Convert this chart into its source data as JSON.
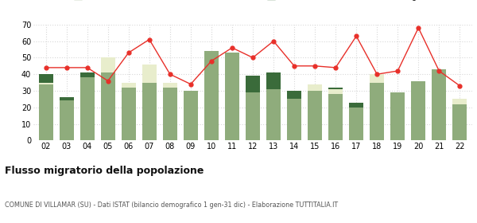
{
  "years": [
    "02",
    "03",
    "04",
    "05",
    "06",
    "07",
    "08",
    "09",
    "10",
    "11",
    "12",
    "13",
    "14",
    "15",
    "16",
    "17",
    "18",
    "19",
    "20",
    "21",
    "22"
  ],
  "iscritti_comuni": [
    34,
    24,
    38,
    41,
    32,
    35,
    32,
    30,
    54,
    53,
    29,
    31,
    25,
    30,
    28,
    20,
    35,
    29,
    36,
    43,
    22
  ],
  "iscritti_estero": [
    1,
    0,
    0,
    9,
    3,
    11,
    3,
    0,
    0,
    0,
    0,
    0,
    0,
    4,
    3,
    0,
    5,
    0,
    0,
    0,
    3
  ],
  "iscritti_altri": [
    5,
    2,
    3,
    0,
    0,
    0,
    0,
    0,
    0,
    0,
    10,
    10,
    5,
    0,
    1,
    3,
    0,
    0,
    0,
    0,
    0
  ],
  "cancellati": [
    44,
    44,
    44,
    36,
    53,
    61,
    40,
    34,
    48,
    56,
    50,
    60,
    45,
    45,
    44,
    63,
    40,
    42,
    68,
    42,
    33
  ],
  "color_comuni": "#8fac7c",
  "color_estero": "#e8edcc",
  "color_altri": "#3a6b3a",
  "color_cancellati": "#e8302a",
  "bg_color": "#ffffff",
  "grid_color": "#d8d8d8",
  "title": "Flusso migratorio della popolazione",
  "subtitle": "COMUNE DI VILLAMAR (SU) - Dati ISTAT (bilancio demografico 1 gen-31 dic) - Elaborazione TUTTITALIA.IT",
  "ylim": [
    0,
    70
  ],
  "yticks": [
    0,
    10,
    20,
    30,
    40,
    50,
    60,
    70
  ]
}
